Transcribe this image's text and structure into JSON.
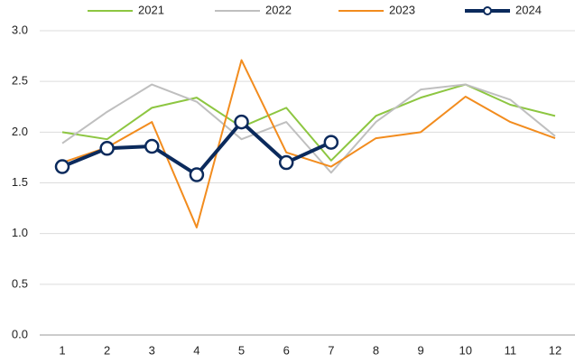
{
  "chart_data": {
    "type": "line",
    "categories": [
      "1",
      "2",
      "3",
      "4",
      "5",
      "6",
      "7",
      "8",
      "9",
      "10",
      "11",
      "12"
    ],
    "series": [
      {
        "name": "2021",
        "color": "#8dc641",
        "values": [
          2.0,
          1.93,
          2.24,
          2.34,
          2.05,
          2.24,
          1.72,
          2.16,
          2.34,
          2.47,
          2.27,
          2.16
        ]
      },
      {
        "name": "2022",
        "color": "#bfbfbf",
        "values": [
          1.89,
          2.2,
          2.47,
          2.3,
          1.93,
          2.1,
          1.6,
          2.1,
          2.42,
          2.47,
          2.32,
          1.96
        ]
      },
      {
        "name": "2023",
        "color": "#f28c1e",
        "values": [
          1.7,
          1.85,
          2.1,
          1.06,
          2.71,
          1.8,
          1.66,
          1.94,
          2.0,
          2.35,
          2.1,
          1.94
        ]
      },
      {
        "name": "2024",
        "color": "#0b2a5c",
        "markers": true,
        "values": [
          1.66,
          1.84,
          1.86,
          1.58,
          2.1,
          1.7,
          1.9,
          null,
          null,
          null,
          null,
          null
        ]
      }
    ],
    "ylim": [
      0,
      3
    ],
    "yticks": [
      {
        "value": 0,
        "label": "0.0"
      },
      {
        "value": 0.5,
        "label": "0.5"
      },
      {
        "value": 1,
        "label": "1.0"
      },
      {
        "value": 1.5,
        "label": "1.5"
      },
      {
        "value": 2,
        "label": "2.0"
      },
      {
        "value": 2.5,
        "label": "2.5"
      },
      {
        "value": 3,
        "label": "3.0"
      }
    ],
    "grid": true,
    "legend": "top"
  }
}
